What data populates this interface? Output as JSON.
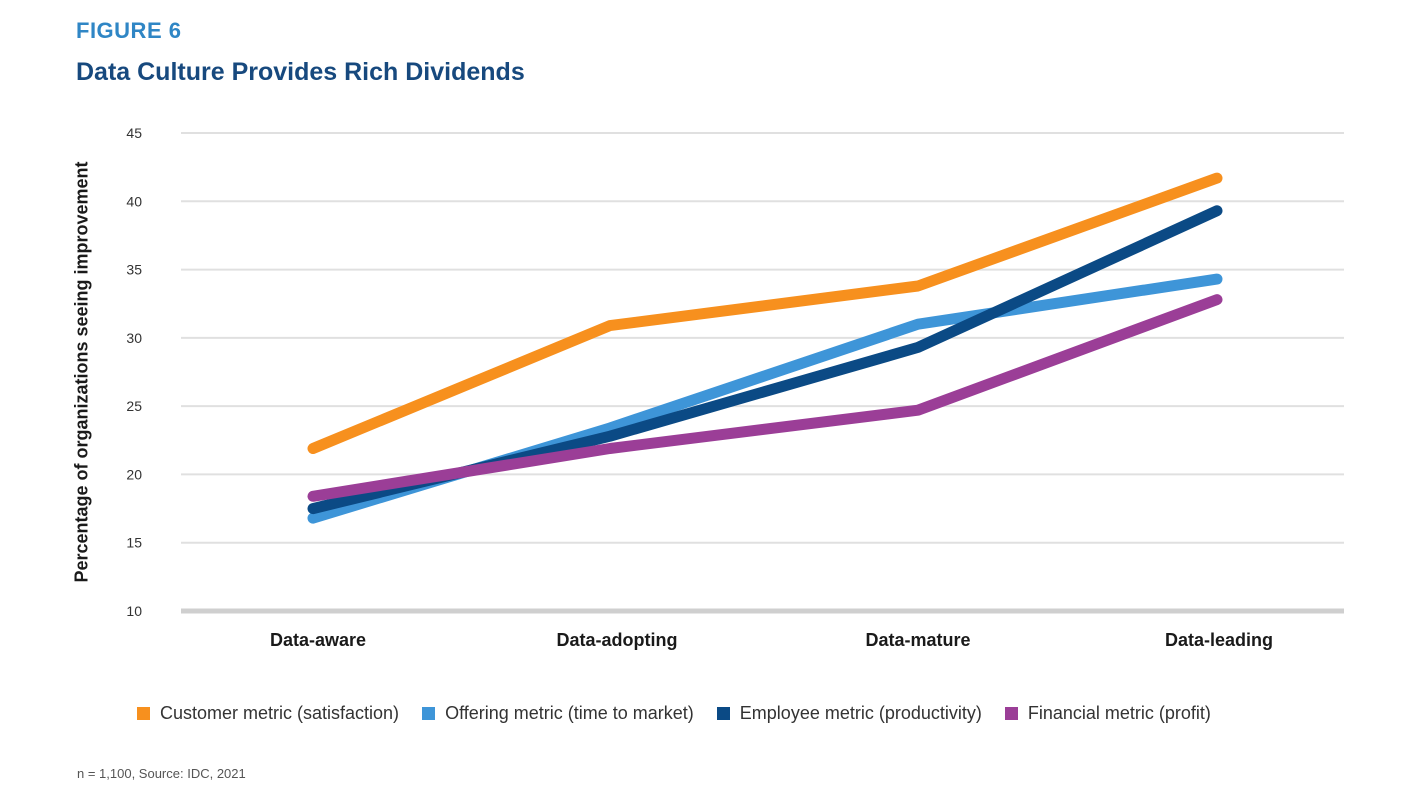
{
  "header": {
    "figure_label": "FIGURE 6",
    "title": "Data Culture Provides Rich Dividends"
  },
  "footnote": "n = 1,100, Source: IDC, 2021",
  "chart_data": {
    "type": "line",
    "title": "Data Culture Provides Rich Dividends",
    "xlabel": "",
    "ylabel": "Percentage of organizations seeing improvement",
    "categories": [
      "Data-aware",
      "Data-adopting",
      "Data-mature",
      "Data-leading"
    ],
    "ylim": [
      10,
      45
    ],
    "yticks": [
      10,
      15,
      20,
      25,
      30,
      35,
      40,
      45
    ],
    "grid": true,
    "legend_position": "bottom",
    "series": [
      {
        "name": "Customer metric (satisfaction)",
        "color": "#f7901e",
        "values": [
          21.9,
          30.9,
          33.8,
          41.7
        ]
      },
      {
        "name": "Offering metric (time to market)",
        "color": "#3e95d8",
        "values": [
          16.8,
          23.4,
          31.0,
          34.3
        ]
      },
      {
        "name": "Employee metric (productivity)",
        "color": "#0b4a85",
        "values": [
          17.5,
          22.8,
          29.3,
          39.3
        ]
      },
      {
        "name": "Financial metric (profit)",
        "color": "#9b3e97",
        "values": [
          18.4,
          21.9,
          24.7,
          32.8
        ]
      }
    ]
  }
}
